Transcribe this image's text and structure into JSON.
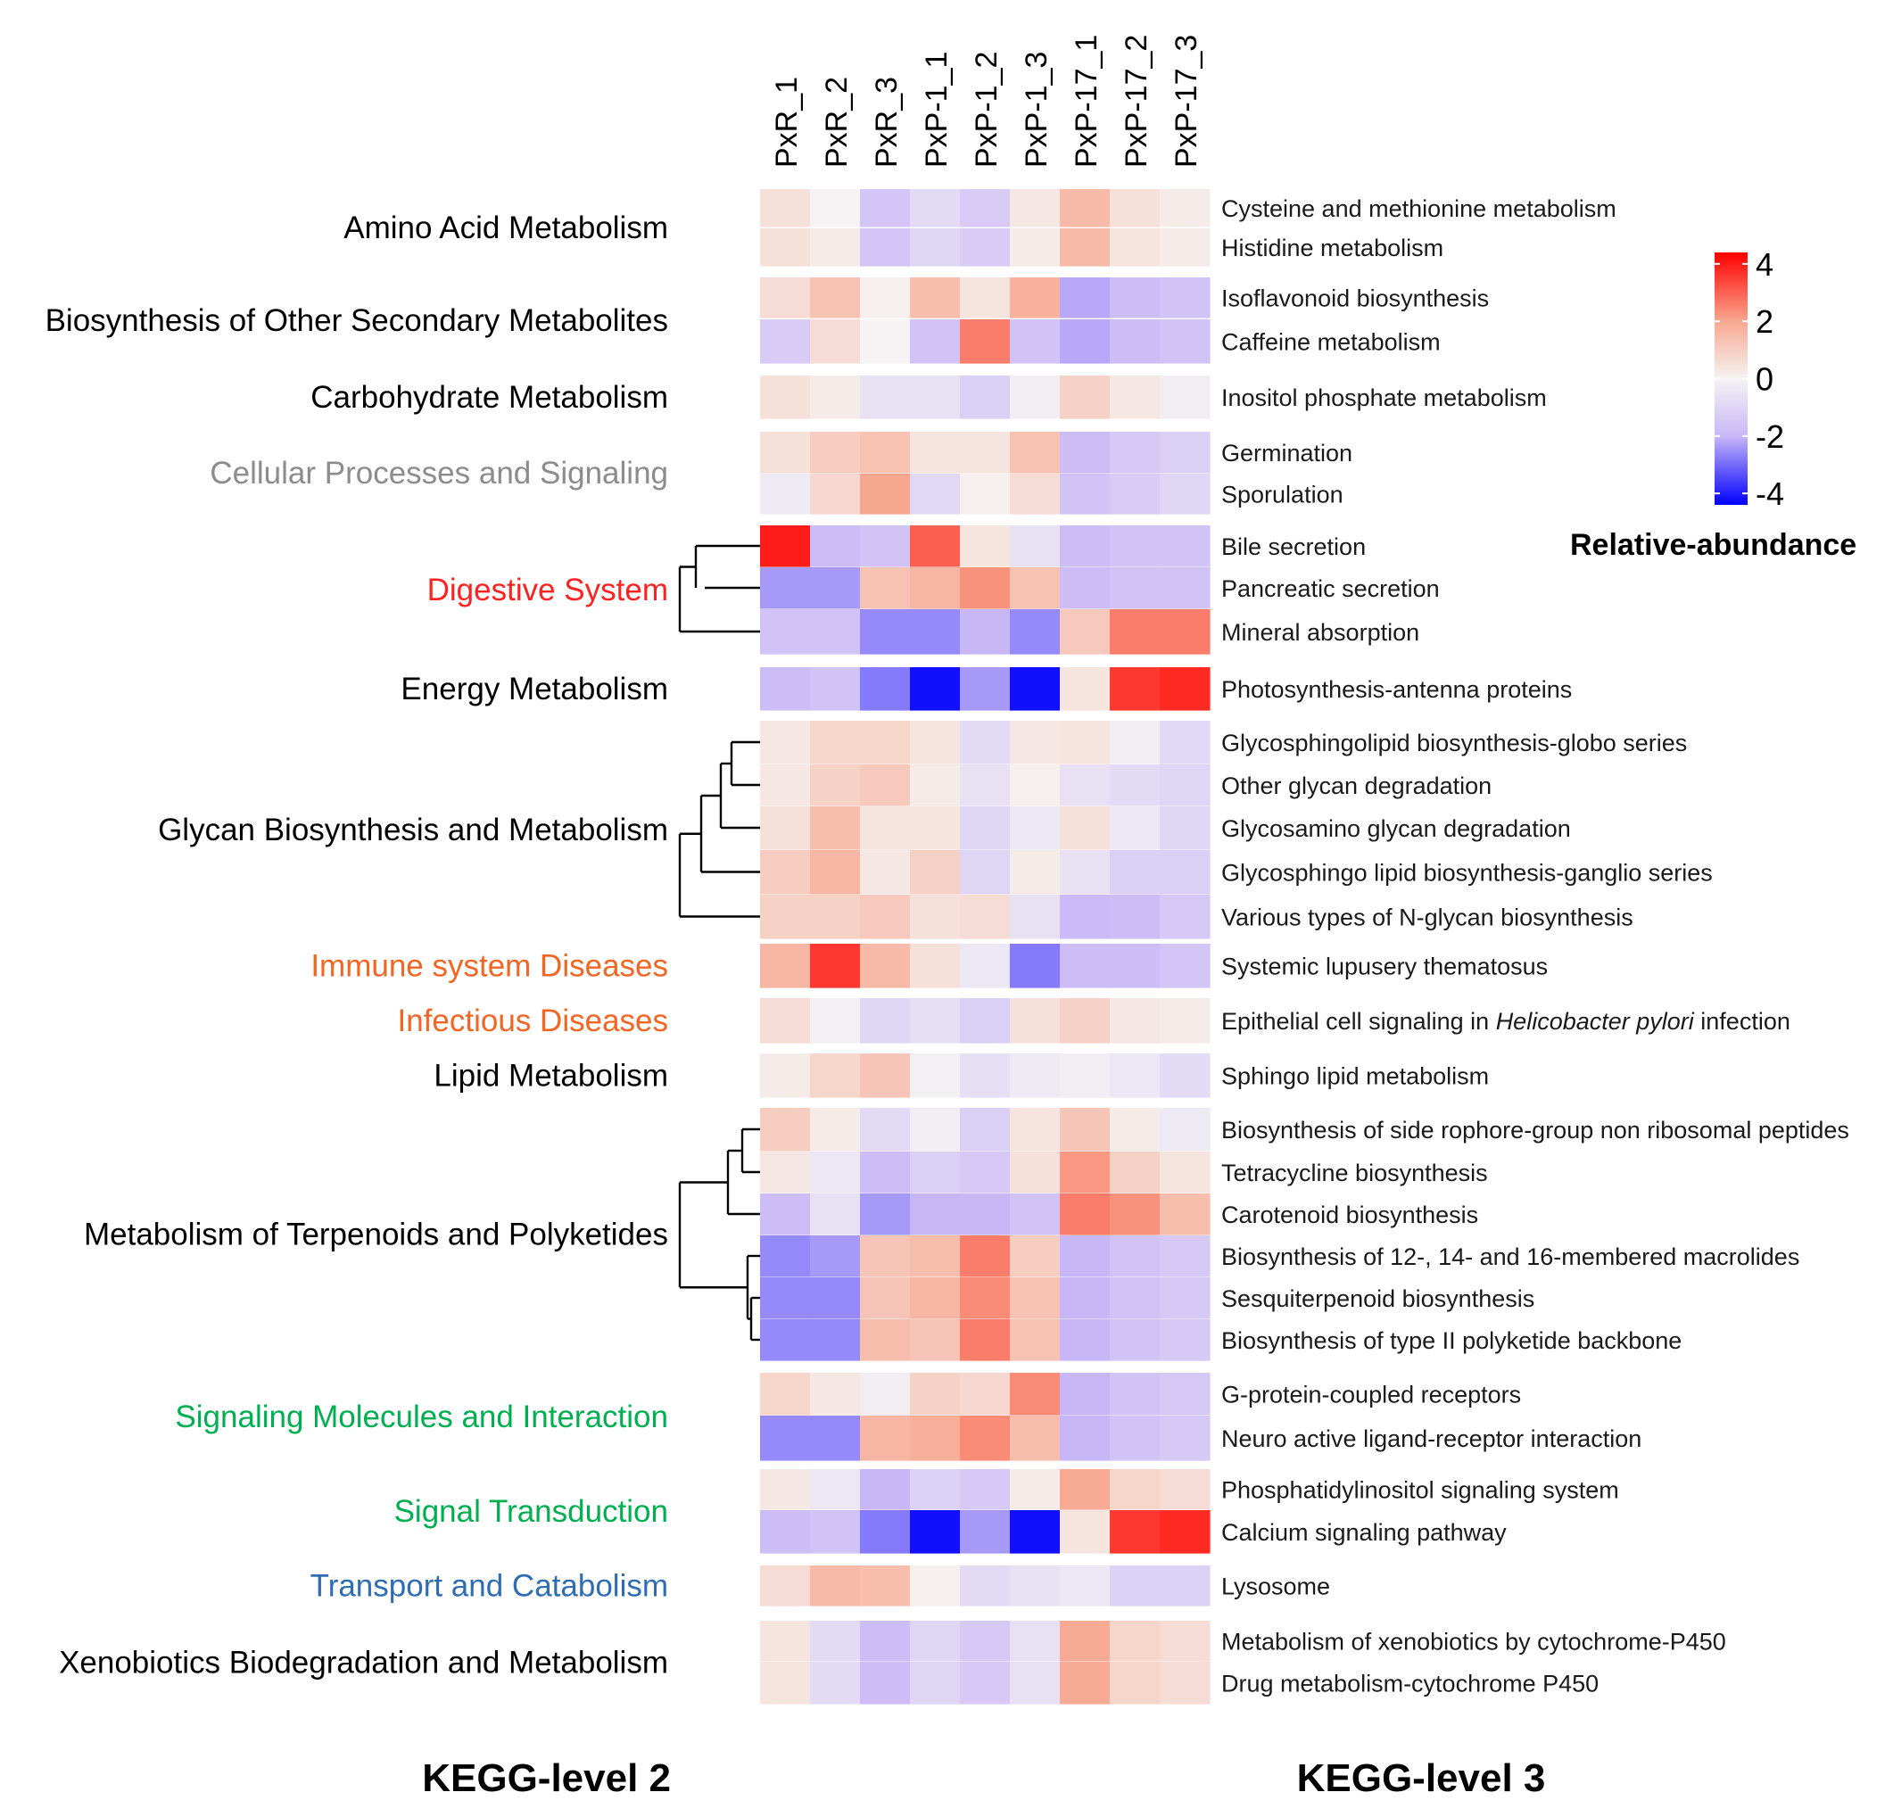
{
  "chart_data": {
    "type": "heatmap",
    "columns": [
      "PxR_1",
      "PxR_2",
      "PxR_3",
      "PxP-1_1",
      "PxP-1_2",
      "PxP-1_3",
      "PxP-17_1",
      "PxP-17_2",
      "PxP-17_3"
    ],
    "groups": [
      {
        "name": "Amino Acid Metabolism",
        "color": "#000000",
        "rows": [
          {
            "label": "Cysteine and methionine metabolism",
            "values": [
              0.5,
              0.0,
              -1.5,
              -0.8,
              -1.3,
              0.3,
              1.5,
              0.5,
              0.2
            ]
          },
          {
            "label": "Histidine metabolism",
            "values": [
              0.5,
              0.2,
              -1.5,
              -1.0,
              -1.3,
              0.2,
              1.5,
              0.4,
              0.2
            ]
          }
        ]
      },
      {
        "name": "Biosynthesis of Other Secondary Metabolites",
        "color": "#000000",
        "rows": [
          {
            "label": "Isoflavonoid biosynthesis",
            "values": [
              0.6,
              1.3,
              0.1,
              1.4,
              0.4,
              1.7,
              -2.2,
              -1.8,
              -1.6
            ]
          },
          {
            "label": "Caffeine metabolism",
            "values": [
              -1.3,
              0.6,
              0.0,
              -1.6,
              2.6,
              -1.6,
              -2.2,
              -1.8,
              -1.6
            ]
          }
        ]
      },
      {
        "name": "Carbohydrate Metabolism",
        "color": "#000000",
        "rows": [
          {
            "label": "Inositol phosphate metabolism",
            "values": [
              0.5,
              0.2,
              -0.6,
              -0.6,
              -1.2,
              -0.2,
              0.9,
              0.3,
              -0.2
            ]
          }
        ]
      },
      {
        "name": "Cellular Processes and Signaling",
        "color": "#8c8c8c",
        "rows": [
          {
            "label": "Germination",
            "values": [
              0.5,
              1.0,
              1.3,
              0.4,
              0.4,
              1.3,
              -1.8,
              -1.4,
              -1.2
            ]
          },
          {
            "label": "Sporulation",
            "values": [
              -0.3,
              0.7,
              2.0,
              -0.9,
              0.1,
              0.6,
              -1.6,
              -1.3,
              -1.0
            ]
          }
        ]
      },
      {
        "name": "Digestive System",
        "color": "#ff2020",
        "rows": [
          {
            "label": "Bile secretion",
            "values": [
              4.0,
              -1.8,
              -1.6,
              3.0,
              0.4,
              -0.6,
              -1.8,
              -1.6,
              -1.6
            ]
          },
          {
            "label": "Pancreatic secretion",
            "values": [
              -2.4,
              -2.4,
              1.3,
              1.6,
              2.3,
              1.3,
              -1.8,
              -1.6,
              -1.6
            ]
          },
          {
            "label": "Mineral absorption",
            "values": [
              -1.6,
              -1.6,
              -2.6,
              -2.6,
              -2.0,
              -2.6,
              1.1,
              2.6,
              2.6
            ]
          }
        ]
      },
      {
        "name": "Energy Metabolism",
        "color": "#000000",
        "rows": [
          {
            "label": "Photosynthesis-antenna proteins",
            "values": [
              -1.8,
              -1.6,
              -2.8,
              -4.2,
              -2.4,
              -4.2,
              0.4,
              3.6,
              3.8
            ]
          }
        ]
      },
      {
        "name": "Glycan Biosynthesis and Metabolism",
        "color": "#000000",
        "rows": [
          {
            "label": "Glycosphingolipid biosynthesis-globo series",
            "values": [
              0.3,
              0.8,
              0.8,
              0.4,
              -0.8,
              0.3,
              0.4,
              -0.2,
              -0.9
            ]
          },
          {
            "label": "Other glycan degradation",
            "values": [
              0.3,
              0.9,
              1.1,
              0.2,
              -0.6,
              0.1,
              -0.6,
              -0.8,
              -1.0
            ]
          },
          {
            "label": "Glycosamino glycan degradation",
            "values": [
              0.5,
              1.4,
              0.4,
              0.4,
              -1.0,
              -0.4,
              0.5,
              -0.4,
              -1.0
            ]
          },
          {
            "label": "Glycosphingo lipid biosynthesis-ganglio series",
            "values": [
              1.0,
              1.6,
              0.3,
              0.9,
              -1.0,
              0.2,
              -0.6,
              -1.2,
              -1.2
            ]
          },
          {
            "label": "Various types of N-glycan biosynthesis",
            "values": [
              0.9,
              0.9,
              1.1,
              0.5,
              0.6,
              -0.6,
              -1.9,
              -1.8,
              -1.4
            ]
          }
        ]
      },
      {
        "name": "Immune system Diseases",
        "color": "#f26522",
        "rows": [
          {
            "label": "Systemic lupusery thematosus",
            "values": [
              1.6,
              3.6,
              1.5,
              0.5,
              -0.4,
              -2.8,
              -1.8,
              -1.8,
              -1.5
            ]
          }
        ]
      },
      {
        "name": "Infectious Diseases",
        "color": "#f26522",
        "rows": [
          {
            "label": "Epithelial cell signaling in ",
            "label_italic": "Helicobacter pylori",
            "label_tail": " infection",
            "values": [
              0.6,
              -0.1,
              -1.0,
              -0.7,
              -1.2,
              0.5,
              0.9,
              0.3,
              0.2
            ]
          }
        ]
      },
      {
        "name": "Lipid Metabolism",
        "color": "#000000",
        "rows": [
          {
            "label": "Sphingo lipid metabolism",
            "values": [
              0.2,
              0.8,
              1.2,
              -0.1,
              -0.7,
              -0.3,
              -0.2,
              -0.4,
              -0.8
            ]
          }
        ]
      },
      {
        "name": "Metabolism of Terpenoids and Polyketides",
        "color": "#000000",
        "rows": [
          {
            "label": "Biosynthesis of side rophore-group non ribosomal peptides",
            "values": [
              1.0,
              0.2,
              -0.8,
              -0.2,
              -1.2,
              0.4,
              1.2,
              0.2,
              -0.3
            ]
          },
          {
            "label": "Tetracycline biosynthesis",
            "values": [
              0.3,
              -0.4,
              -1.8,
              -1.2,
              -1.4,
              0.5,
              2.2,
              0.9,
              0.4
            ]
          },
          {
            "label": "Carotenoid biosynthesis",
            "values": [
              -1.8,
              -0.6,
              -2.4,
              -2.0,
              -2.0,
              -1.6,
              2.6,
              2.3,
              1.4
            ]
          },
          {
            "label": "Biosynthesis of 12-, 14- and 16-membered macrolides",
            "values": [
              -2.6,
              -2.4,
              1.2,
              1.4,
              2.6,
              1.0,
              -2.0,
              -1.6,
              -1.4
            ]
          },
          {
            "label": "Sesquiterpenoid biosynthesis",
            "values": [
              -2.6,
              -2.6,
              1.2,
              1.6,
              2.4,
              1.3,
              -2.0,
              -1.6,
              -1.4
            ]
          },
          {
            "label": "Biosynthesis of type II polyketide backbone",
            "values": [
              -2.6,
              -2.6,
              1.4,
              1.2,
              2.6,
              1.3,
              -2.0,
              -1.6,
              -1.4
            ]
          }
        ]
      },
      {
        "name": "Signaling Molecules and Interaction",
        "color": "#00b050",
        "rows": [
          {
            "label": "G-protein-coupled receptors",
            "values": [
              0.8,
              0.3,
              -0.2,
              0.9,
              0.7,
              2.4,
              -2.0,
              -1.6,
              -1.4
            ]
          },
          {
            "label": "Neuro active ligand-receptor interaction",
            "values": [
              -2.6,
              -2.6,
              1.6,
              1.8,
              2.4,
              1.4,
              -2.0,
              -1.6,
              -1.4
            ]
          }
        ]
      },
      {
        "name": "Signal Transduction",
        "color": "#00b050",
        "rows": [
          {
            "label": "Phosphatidylinositol signaling system",
            "values": [
              0.3,
              -0.4,
              -2.0,
              -1.1,
              -1.4,
              0.2,
              1.9,
              0.8,
              0.6
            ]
          },
          {
            "label": "Calcium signaling pathway",
            "values": [
              -1.8,
              -1.6,
              -2.8,
              -4.2,
              -2.4,
              -4.2,
              0.4,
              3.6,
              3.8
            ]
          }
        ]
      },
      {
        "name": "Transport and Catabolism",
        "color": "#2e6db4",
        "rows": [
          {
            "label": "Lysosome",
            "values": [
              0.6,
              1.5,
              1.4,
              0.1,
              -0.8,
              -0.6,
              -0.4,
              -1.1,
              -1.1
            ]
          }
        ]
      },
      {
        "name": "Xenobiotics Biodegradation and Metabolism",
        "color": "#000000",
        "rows": [
          {
            "label": "Metabolism of xenobiotics by cytochrome-P450",
            "values": [
              0.4,
              -0.8,
              -1.8,
              -1.0,
              -1.4,
              -0.6,
              1.9,
              0.8,
              0.6
            ]
          },
          {
            "label": "Drug metabolism-cytochrome P450",
            "values": [
              0.4,
              -0.8,
              -1.8,
              -1.0,
              -1.4,
              -0.6,
              1.9,
              0.8,
              0.6
            ]
          }
        ]
      }
    ],
    "legend": {
      "title": "Relative-abundance",
      "range": [
        -4.4,
        4.4
      ],
      "ticks": [
        {
          "label": "4",
          "value": 4
        },
        {
          "label": "2",
          "value": 2
        },
        {
          "label": "0",
          "value": 0
        },
        {
          "label": "-2",
          "value": -2
        },
        {
          "label": "-4",
          "value": -4
        }
      ],
      "colors": {
        "low": "#0000ff",
        "mid_low": "#c8b7f7",
        "mid": "#f5f3f3",
        "mid_high": "#f8a78f",
        "high": "#ff0000"
      },
      "position": "top-right"
    },
    "footer_left": "KEGG-level 2",
    "footer_right": "KEGG-level 3"
  }
}
